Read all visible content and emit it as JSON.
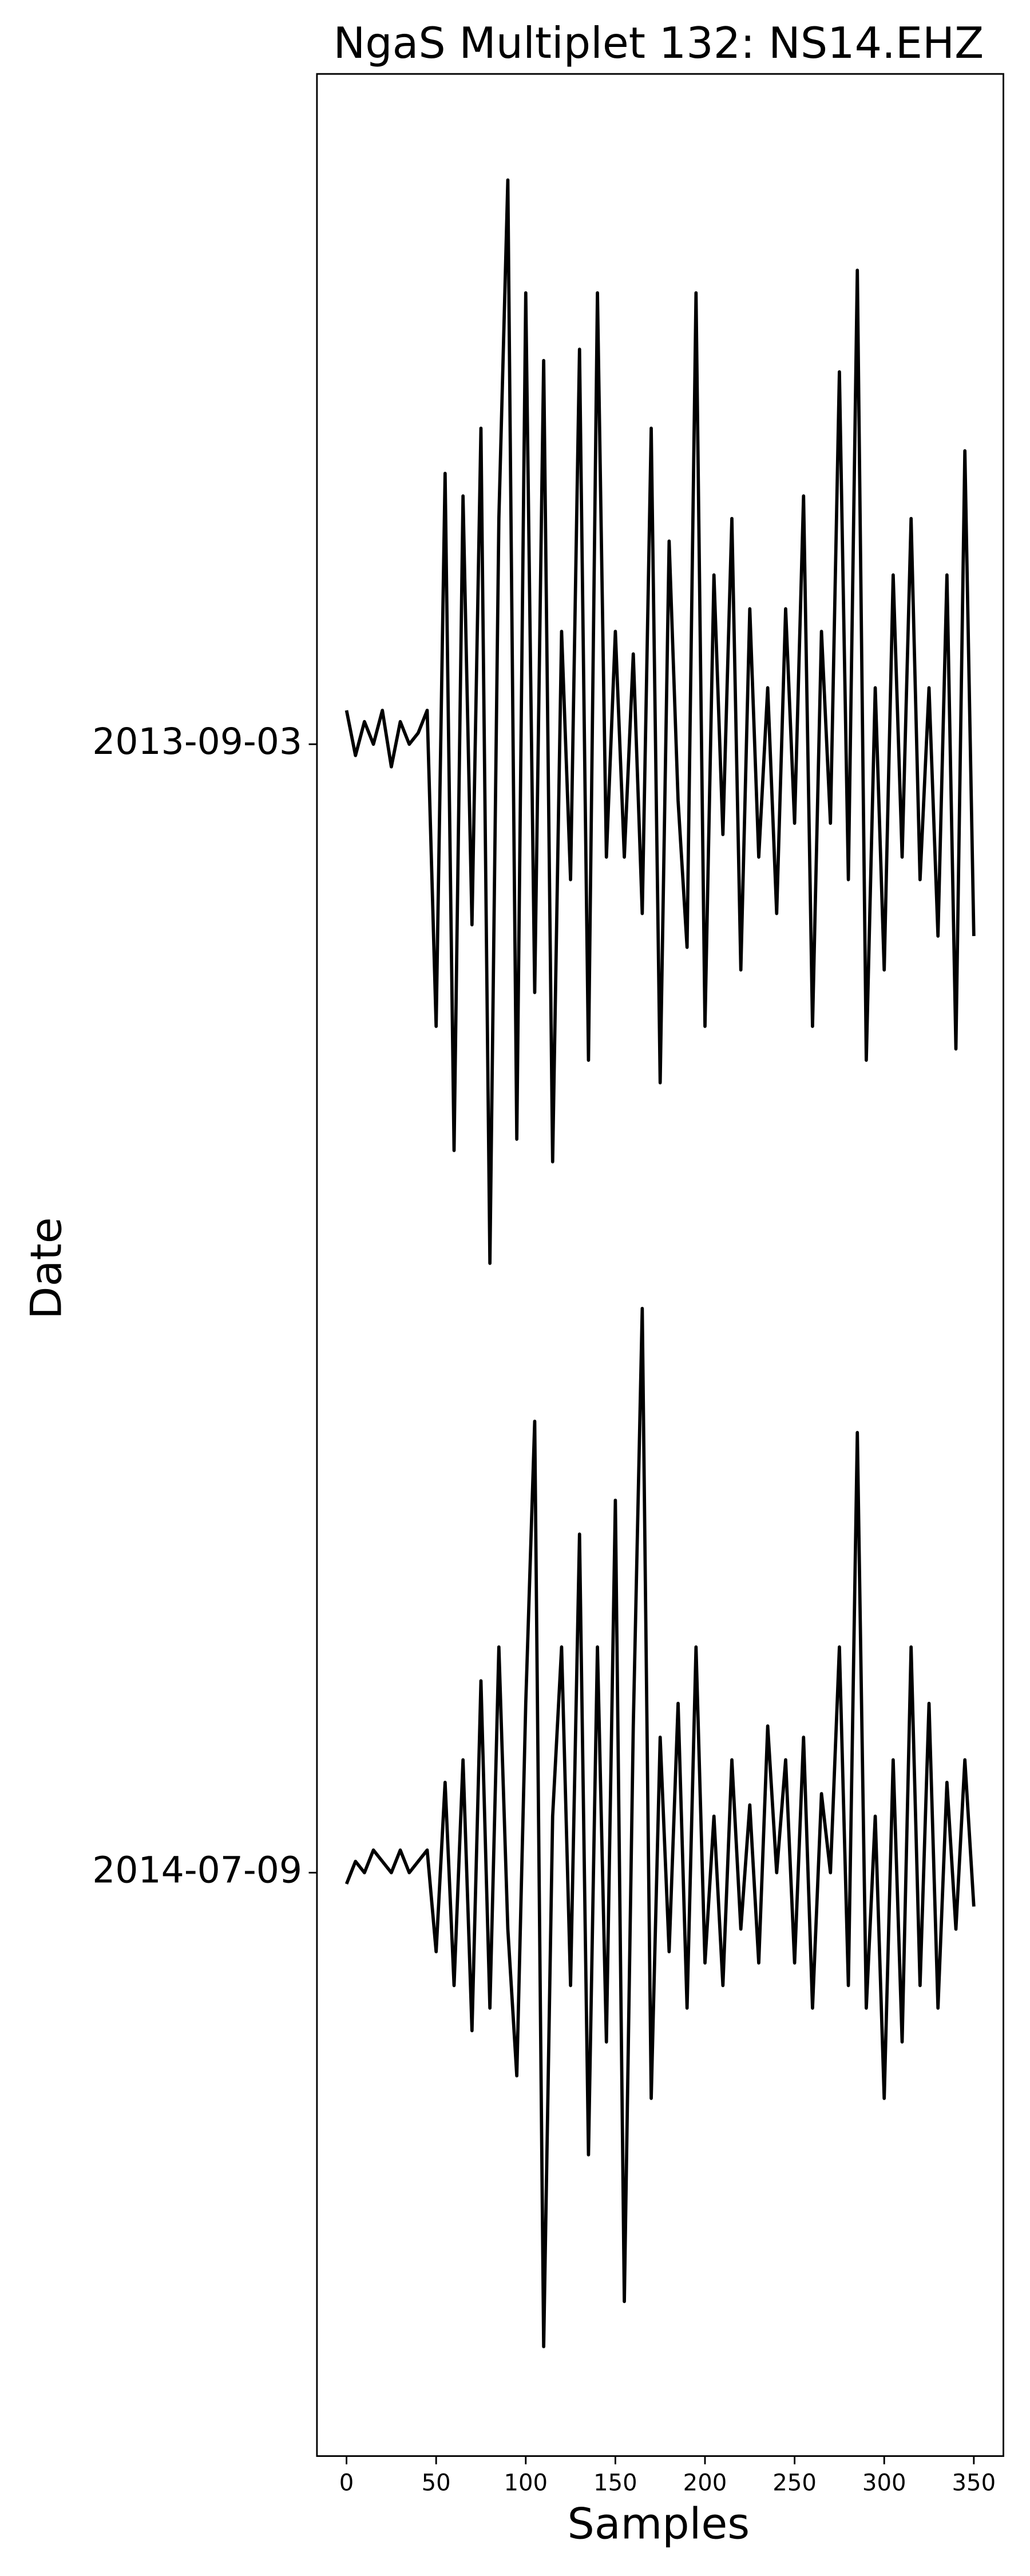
{
  "chart_data": {
    "type": "line",
    "title": "NgaS Multiplet 132: NS14.EHZ",
    "xlabel": "Samples",
    "ylabel": "Date",
    "x": [
      0,
      5,
      10,
      15,
      20,
      25,
      30,
      35,
      40,
      45,
      50,
      55,
      60,
      65,
      70,
      75,
      80,
      85,
      90,
      95,
      100,
      105,
      110,
      115,
      120,
      125,
      130,
      135,
      140,
      145,
      150,
      155,
      160,
      165,
      170,
      175,
      180,
      185,
      190,
      195,
      200,
      205,
      210,
      215,
      220,
      225,
      230,
      235,
      240,
      245,
      250,
      255,
      260,
      265,
      270,
      275,
      280,
      285,
      290,
      295,
      300,
      305,
      310,
      315,
      320,
      325,
      330,
      335,
      340,
      345,
      350
    ],
    "series": [
      {
        "color": "#000000",
        "values": [
          1.03,
          0.99,
          1.02,
          1.0,
          1.03,
          0.98,
          1.02,
          1.0,
          1.01,
          1.03,
          0.75,
          1.24,
          0.64,
          1.22,
          0.84,
          1.28,
          0.54,
          1.2,
          1.5,
          0.65,
          1.4,
          0.78,
          1.34,
          0.63,
          1.1,
          0.88,
          1.35,
          0.72,
          1.4,
          0.9,
          1.1,
          0.9,
          1.08,
          0.85,
          1.28,
          0.7,
          1.18,
          0.95,
          0.82,
          1.4,
          0.75,
          1.15,
          0.92,
          1.2,
          0.8,
          1.12,
          0.9,
          1.05,
          0.85,
          1.12,
          0.93,
          1.22,
          0.75,
          1.1,
          0.93,
          1.33,
          0.88,
          1.42,
          0.72,
          1.05,
          0.8,
          1.15,
          0.9,
          1.2,
          0.88,
          1.05,
          0.83,
          1.15,
          0.73,
          1.26,
          0.83
        ]
      },
      {
        "color": "#000000",
        "values": [
          -0.01,
          0.01,
          0.0,
          0.02,
          0.01,
          0.0,
          0.02,
          0.0,
          0.01,
          0.02,
          -0.07,
          0.08,
          -0.1,
          0.1,
          -0.14,
          0.17,
          -0.12,
          0.2,
          -0.05,
          -0.18,
          0.15,
          0.4,
          -0.42,
          0.05,
          0.2,
          -0.1,
          0.3,
          -0.25,
          0.2,
          -0.15,
          0.33,
          -0.38,
          0.13,
          0.5,
          -0.2,
          0.12,
          -0.07,
          0.15,
          -0.12,
          0.2,
          -0.08,
          0.05,
          -0.1,
          0.1,
          -0.05,
          0.06,
          -0.08,
          0.13,
          0.0,
          0.1,
          -0.08,
          0.12,
          -0.12,
          0.07,
          0.0,
          0.2,
          -0.1,
          0.39,
          -0.12,
          0.05,
          -0.2,
          0.1,
          -0.15,
          0.2,
          -0.1,
          0.15,
          -0.12,
          0.08,
          -0.05,
          0.1,
          -0.03
        ]
      }
    ],
    "xlim": [
      -16.5,
      366.5
    ],
    "xticks": [
      0,
      50,
      100,
      150,
      200,
      250,
      300,
      350
    ],
    "ylim": [
      -0.517,
      1.594
    ],
    "yticks": [
      {
        "value": 1,
        "label": "2013-09-03"
      },
      {
        "value": 0,
        "label": "2014-07-09"
      }
    ]
  }
}
